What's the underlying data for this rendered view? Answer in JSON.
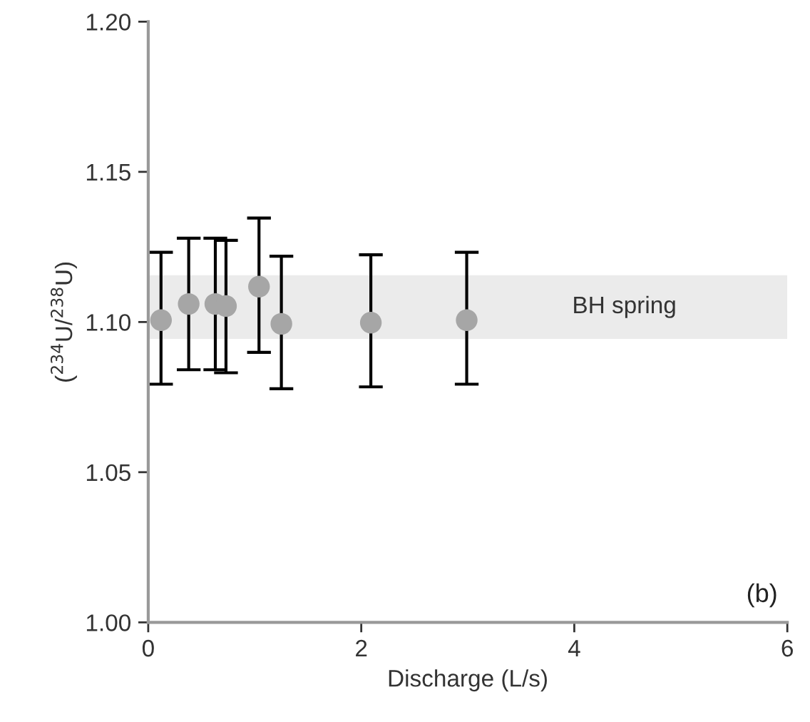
{
  "chart_data": {
    "type": "scatter",
    "xlabel": "Discharge (L/s)",
    "ylabel": "($^{234}$U/$^{238}$U)",
    "x": [
      0.12,
      0.38,
      0.63,
      0.73,
      1.04,
      1.25,
      2.09,
      2.99
    ],
    "values": [
      1.1006,
      1.106,
      1.106,
      1.1053,
      1.1118,
      1.0994,
      1.0998,
      1.1006
    ],
    "errors": [
      [
        1.0793,
        1.1232
      ],
      [
        1.0841,
        1.1279
      ],
      [
        1.0841,
        1.1279
      ],
      [
        1.0831,
        1.1272
      ],
      [
        1.0899,
        1.1346
      ],
      [
        1.0778,
        1.1219
      ],
      [
        1.0784,
        1.1224
      ],
      [
        1.0793,
        1.1232
      ]
    ],
    "color": "#a6a6a6",
    "marker": "circle",
    "xlim": [
      0,
      6
    ],
    "xticks": [
      0,
      2,
      4,
      6
    ],
    "ylim": [
      1.0,
      1.2
    ],
    "yticks": [
      {
        "value": 1.0,
        "label": "1.00"
      },
      {
        "value": 1.05,
        "label": "1.05"
      },
      {
        "value": 1.1,
        "label": "1.10"
      },
      {
        "value": 1.15,
        "label": "1.15"
      },
      {
        "value": 1.2,
        "label": "1.20"
      }
    ],
    "bands": [
      {
        "axis": "y",
        "from": 1.0944,
        "to": 1.1156,
        "label": "BH spring",
        "color": "#ebebeb"
      }
    ],
    "annotations": [
      "(b)"
    ],
    "grid": false,
    "legend": false
  }
}
